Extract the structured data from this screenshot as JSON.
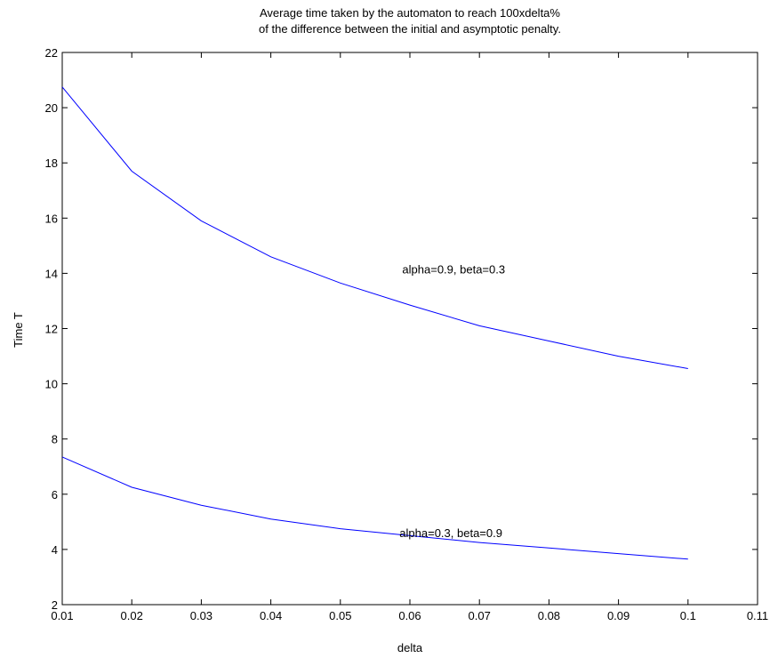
{
  "chart_data": {
    "type": "line",
    "title": "Average time taken by the automaton to reach 100xdelta%",
    "subtitle": "of the difference between the initial and asymptotic penalty.",
    "xlabel": "delta",
    "ylabel": "Time  T",
    "xlim": [
      0.01,
      0.11
    ],
    "ylim": [
      2,
      22
    ],
    "xticks": [
      "0.01",
      "0.02",
      "0.03",
      "0.04",
      "0.05",
      "0.06",
      "0.07",
      "0.08",
      "0.09",
      "0.1",
      "0.11"
    ],
    "yticks": [
      "2",
      "4",
      "6",
      "8",
      "10",
      "12",
      "14",
      "16",
      "18",
      "20",
      "22"
    ],
    "grid": false,
    "line_color": "#0000ff",
    "series": [
      {
        "x": [
          0.01,
          0.02,
          0.03,
          0.04,
          0.05,
          0.06,
          0.07,
          0.08,
          0.09,
          0.1
        ],
        "y": [
          20.75,
          17.7,
          15.9,
          14.6,
          13.65,
          12.85,
          12.1,
          11.55,
          11.0,
          10.55
        ]
      },
      {
        "x": [
          0.01,
          0.02,
          0.03,
          0.04,
          0.05,
          0.06,
          0.07,
          0.08,
          0.09,
          0.1
        ],
        "y": [
          7.35,
          6.25,
          5.6,
          5.1,
          4.75,
          4.5,
          4.25,
          4.05,
          3.85,
          3.65
        ]
      }
    ],
    "annotations": [
      {
        "text": "alpha=0.9,  beta=0.3",
        "x": 0.0663,
        "y": 14.0
      },
      {
        "text": "alpha=0.3, beta=0.9",
        "x": 0.0659,
        "y": 4.45
      }
    ]
  }
}
